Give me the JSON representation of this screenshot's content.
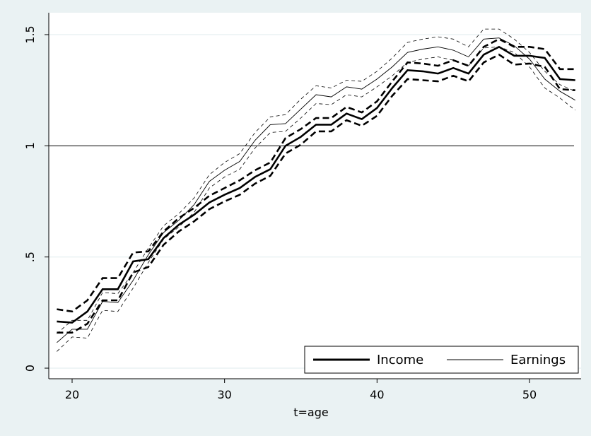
{
  "chart_data": {
    "type": "line",
    "title": "",
    "xlabel": "t=age",
    "ylabel": "",
    "xlim": [
      19,
      53
    ],
    "ylim": [
      0,
      1.5
    ],
    "x_ticks": [
      20,
      30,
      40,
      50
    ],
    "y_ticks": [
      0,
      0.5,
      1,
      1.5
    ],
    "y_tick_labels": [
      "0",
      ".5",
      "1",
      "1.5"
    ],
    "grid": "horizontal",
    "reference_line": 1,
    "legend": {
      "placement": "bottom-right",
      "entries": [
        "Income",
        "Earnings"
      ]
    },
    "x": [
      19,
      20,
      21,
      22,
      23,
      24,
      25,
      26,
      27,
      28,
      29,
      30,
      31,
      32,
      33,
      34,
      35,
      36,
      37,
      38,
      39,
      40,
      41,
      42,
      43,
      44,
      45,
      46,
      47,
      48,
      49,
      50,
      51,
      52,
      53
    ],
    "series": [
      {
        "name": "Income",
        "style": "thick",
        "values": [
          0.21,
          0.205,
          0.255,
          0.355,
          0.355,
          0.48,
          0.49,
          0.585,
          0.645,
          0.69,
          0.745,
          0.78,
          0.81,
          0.86,
          0.895,
          1.0,
          1.04,
          1.095,
          1.095,
          1.145,
          1.12,
          1.17,
          1.26,
          1.34,
          1.335,
          1.325,
          1.35,
          1.325,
          1.41,
          1.445,
          1.405,
          1.405,
          1.395,
          1.3,
          1.295
        ],
        "ci_upper": [
          0.265,
          0.255,
          0.305,
          0.405,
          0.405,
          0.52,
          0.525,
          0.615,
          0.675,
          0.72,
          0.775,
          0.81,
          0.845,
          0.89,
          0.925,
          1.035,
          1.075,
          1.125,
          1.125,
          1.175,
          1.15,
          1.2,
          1.29,
          1.375,
          1.37,
          1.36,
          1.385,
          1.36,
          1.445,
          1.48,
          1.445,
          1.445,
          1.435,
          1.345,
          1.345
        ],
        "ci_lower": [
          0.16,
          0.16,
          0.2,
          0.305,
          0.305,
          0.43,
          0.455,
          0.555,
          0.615,
          0.66,
          0.715,
          0.75,
          0.78,
          0.83,
          0.865,
          0.965,
          1.005,
          1.065,
          1.065,
          1.115,
          1.09,
          1.135,
          1.225,
          1.3,
          1.295,
          1.29,
          1.315,
          1.29,
          1.375,
          1.41,
          1.365,
          1.37,
          1.355,
          1.255,
          1.25
        ]
      },
      {
        "name": "Earnings",
        "style": "thin",
        "values": [
          0.115,
          0.175,
          0.175,
          0.3,
          0.295,
          0.395,
          0.51,
          0.61,
          0.665,
          0.735,
          0.84,
          0.89,
          0.93,
          1.025,
          1.095,
          1.1,
          1.165,
          1.23,
          1.22,
          1.265,
          1.255,
          1.3,
          1.355,
          1.42,
          1.435,
          1.445,
          1.43,
          1.4,
          1.48,
          1.485,
          1.45,
          1.39,
          1.3,
          1.245,
          1.205
        ],
        "ci_upper": [
          0.155,
          0.215,
          0.215,
          0.34,
          0.335,
          0.43,
          0.54,
          0.64,
          0.695,
          0.765,
          0.87,
          0.925,
          0.965,
          1.06,
          1.13,
          1.14,
          1.21,
          1.27,
          1.26,
          1.295,
          1.29,
          1.335,
          1.395,
          1.465,
          1.48,
          1.49,
          1.48,
          1.445,
          1.525,
          1.525,
          1.48,
          1.42,
          1.335,
          1.275,
          1.245
        ],
        "ci_lower": [
          0.075,
          0.14,
          0.135,
          0.26,
          0.255,
          0.36,
          0.475,
          0.58,
          0.635,
          0.7,
          0.81,
          0.86,
          0.895,
          0.99,
          1.06,
          1.065,
          1.125,
          1.19,
          1.185,
          1.23,
          1.22,
          1.265,
          1.315,
          1.375,
          1.39,
          1.4,
          1.385,
          1.36,
          1.44,
          1.445,
          1.42,
          1.355,
          1.26,
          1.215,
          1.16
        ]
      }
    ],
    "colors": {
      "background": "#eaf2f3",
      "plot": "#ffffff",
      "line": "#000000",
      "grid": "#eaf2f3"
    }
  }
}
